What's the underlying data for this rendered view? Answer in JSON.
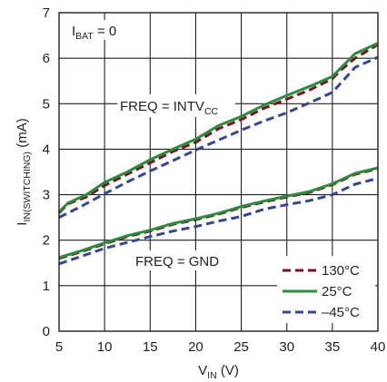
{
  "chart_data": {
    "type": "line",
    "xlabel": {
      "main": "V",
      "sub": "IN",
      "tail": " (V)"
    },
    "ylabel": {
      "main": "I",
      "sub": "IN(SWITCHING)",
      "tail": " (mA)"
    },
    "xlim": [
      5,
      40
    ],
    "ylim": [
      0,
      7
    ],
    "xticks": [
      "5",
      "10",
      "15",
      "20",
      "25",
      "30",
      "35",
      "40"
    ],
    "yticks": [
      "0",
      "1",
      "2",
      "3",
      "4",
      "5",
      "6",
      "7"
    ],
    "grid": true,
    "legend_position": "bottom-right",
    "annotations": {
      "ibat": {
        "main": "I",
        "sub": "BAT",
        "tail": " = 0"
      },
      "intvcc": {
        "main": "FREQ = INTV",
        "sub": "CC",
        "tail": ""
      },
      "gnd": {
        "main": "FREQ = GND",
        "sub": "",
        "tail": ""
      }
    },
    "series": [
      {
        "name": "130°C",
        "color": "#7a1226",
        "dash": "dash",
        "groups": [
          {
            "x": [
              5,
              6,
              8,
              10,
              12.5,
              15,
              17.5,
              20,
              22.5,
              25,
              27.5,
              30,
              32.5,
              35,
              36,
              37.5,
              40
            ],
            "y": [
              2.6,
              2.8,
              2.95,
              3.2,
              3.45,
              3.7,
              3.95,
              4.15,
              4.45,
              4.65,
              4.9,
              5.1,
              5.3,
              5.55,
              5.75,
              6.0,
              6.3
            ]
          },
          {
            "x": [
              5,
              7.5,
              10,
              12.5,
              15,
              17.5,
              20,
              22.5,
              25,
              27.5,
              30,
              32.5,
              35,
              37.5,
              40
            ],
            "y": [
              1.6,
              1.75,
              1.92,
              2.08,
              2.2,
              2.35,
              2.45,
              2.57,
              2.72,
              2.84,
              2.95,
              3.05,
              3.22,
              3.45,
              3.57
            ]
          }
        ]
      },
      {
        "name": "25°C",
        "color": "#2a8c3c",
        "dash": "solid",
        "groups": [
          {
            "x": [
              5,
              6,
              8,
              10,
              12.5,
              15,
              17.5,
              20,
              22.5,
              25,
              27.5,
              30,
              32.5,
              35,
              36,
              37.5,
              40
            ],
            "y": [
              2.62,
              2.82,
              3.0,
              3.27,
              3.5,
              3.77,
              4.0,
              4.22,
              4.52,
              4.72,
              4.97,
              5.18,
              5.38,
              5.6,
              5.8,
              6.1,
              6.33
            ]
          },
          {
            "x": [
              5,
              7.5,
              10,
              12.5,
              15,
              17.5,
              20,
              22.5,
              25,
              27.5,
              30,
              32.5,
              35,
              37.5,
              40
            ],
            "y": [
              1.62,
              1.77,
              1.94,
              2.1,
              2.22,
              2.37,
              2.47,
              2.59,
              2.74,
              2.86,
              2.97,
              3.07,
              3.24,
              3.47,
              3.59
            ]
          }
        ]
      },
      {
        "name": "–45°C",
        "color": "#35469a",
        "dash": "dash",
        "groups": [
          {
            "x": [
              5,
              7.5,
              10,
              12.5,
              15,
              17.5,
              20,
              22.5,
              25,
              27.5,
              30,
              32.5,
              35,
              37.5,
              40
            ],
            "y": [
              2.5,
              2.75,
              3.02,
              3.28,
              3.52,
              3.75,
              3.98,
              4.2,
              4.42,
              4.62,
              4.8,
              5.02,
              5.25,
              5.8,
              6.02
            ]
          },
          {
            "x": [
              5,
              7.5,
              10,
              12.5,
              15,
              17.5,
              20,
              22.5,
              25,
              27.5,
              30,
              32.5,
              35,
              37.5,
              40
            ],
            "y": [
              1.48,
              1.65,
              1.82,
              1.95,
              2.08,
              2.2,
              2.3,
              2.42,
              2.52,
              2.68,
              2.78,
              2.87,
              3.0,
              3.23,
              3.36
            ]
          }
        ]
      }
    ]
  }
}
